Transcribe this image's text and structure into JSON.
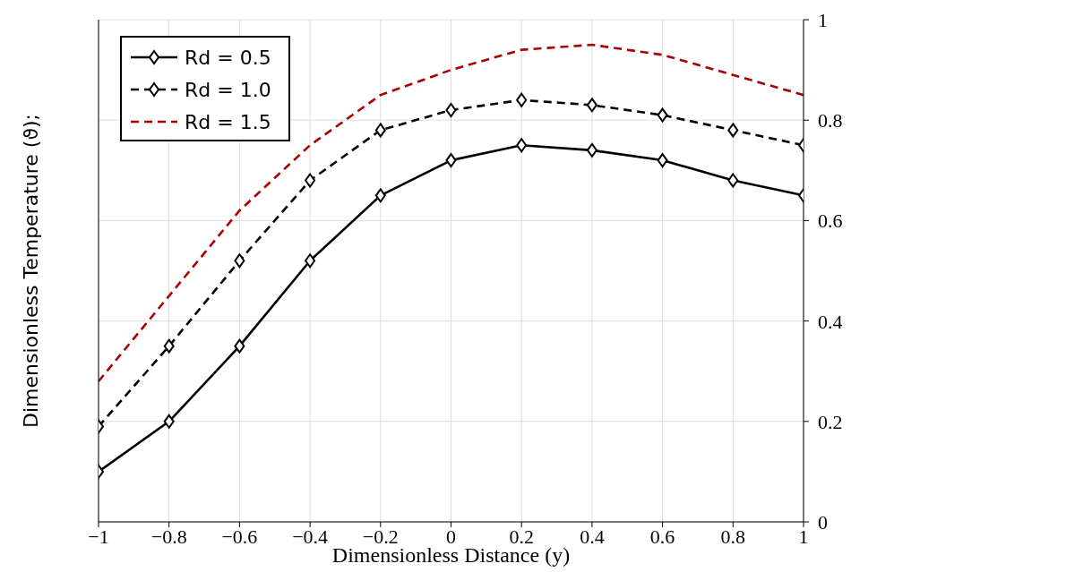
{
  "chart_data": {
    "type": "line",
    "xlabel": "Dimensionless  Distance  (y)",
    "ylabel": "Dimensionless  Temperature  (ϑ);",
    "x": [
      -1,
      -0.8,
      -0.6,
      -0.4,
      -0.2,
      0,
      0.2,
      0.4,
      0.6,
      0.8,
      1
    ],
    "series": [
      {
        "name": "Rd = 0.5",
        "color": "#000000",
        "marker": "diamond",
        "line_style": "solid",
        "values": [
          0.1,
          0.2,
          0.35,
          0.52,
          0.65,
          0.72,
          0.75,
          0.74,
          0.72,
          0.68,
          0.65
        ]
      },
      {
        "name": "Rd = 1.0",
        "color": "#000000",
        "marker": "diamond",
        "line_style": "dashed",
        "values": [
          0.19,
          0.35,
          0.52,
          0.68,
          0.78,
          0.82,
          0.84,
          0.83,
          0.81,
          0.78,
          0.75
        ]
      },
      {
        "name": "Rd = 1.5",
        "color": "#aa0000",
        "marker": "none",
        "line_style": "dashed",
        "values": [
          0.28,
          0.45,
          0.62,
          0.75,
          0.85,
          0.9,
          0.94,
          0.95,
          0.93,
          0.89,
          0.85
        ]
      }
    ],
    "xlim": [
      -1,
      1
    ],
    "xticks": [
      -1,
      -0.8,
      -0.6,
      -0.4,
      -0.2,
      0,
      0.2,
      0.4,
      0.6,
      0.8,
      1
    ],
    "ylim": [
      0,
      1
    ],
    "yticks": [
      0,
      0.2,
      0.4,
      0.6,
      0.8,
      1
    ],
    "grid": true,
    "legend": "top left"
  }
}
